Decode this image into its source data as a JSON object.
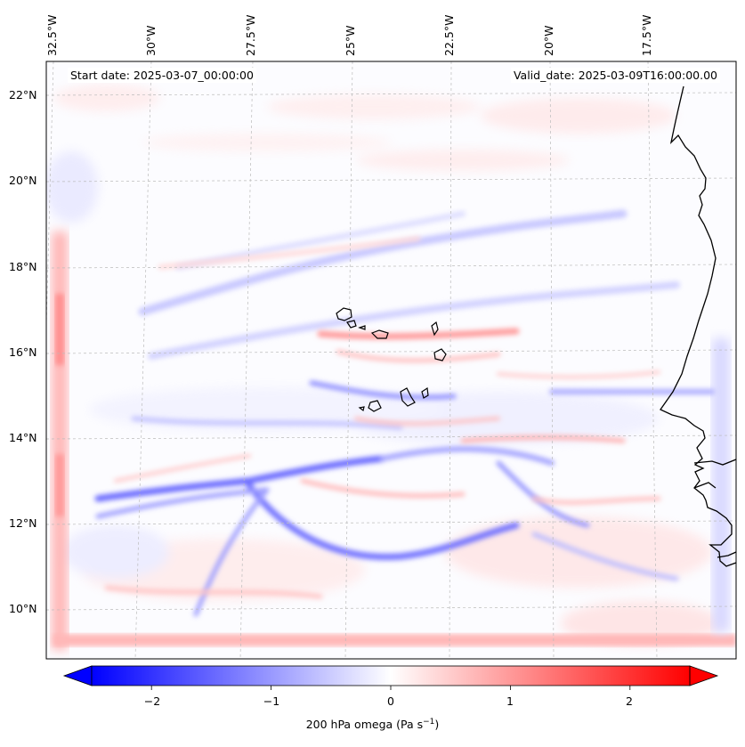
{
  "header": {
    "start_date": "Start date: 2025-03-07_00:00:00",
    "valid_date": "Valid_date: 2025-03-09T16:00:00.00"
  },
  "map": {
    "lon_labels": [
      "32.5°W",
      "30°W",
      "27.5°W",
      "25°W",
      "22.5°W",
      "20°W",
      "17.5°W"
    ],
    "lat_labels": [
      "22°N",
      "20°N",
      "18°N",
      "16°N",
      "14°N",
      "12°N",
      "10°N"
    ],
    "extent": {
      "lon_min": -33.0,
      "lon_max": -15.2,
      "lat_min": 8.9,
      "lat_max": 22.8
    },
    "colormap": "bwr",
    "value_range": [
      -2.5,
      2.5
    ]
  },
  "colorbar": {
    "ticks": [
      "−2",
      "−1",
      "0",
      "1",
      "2"
    ],
    "tick_values": [
      -2,
      -1,
      0,
      1,
      2
    ],
    "label_main": "200 hPa omega (Pa s",
    "label_exp": "−1",
    "label_close": ")",
    "color_min": "#0000ff",
    "color_mid": "#ffffff",
    "color_max": "#ff0000",
    "extend": "both"
  }
}
